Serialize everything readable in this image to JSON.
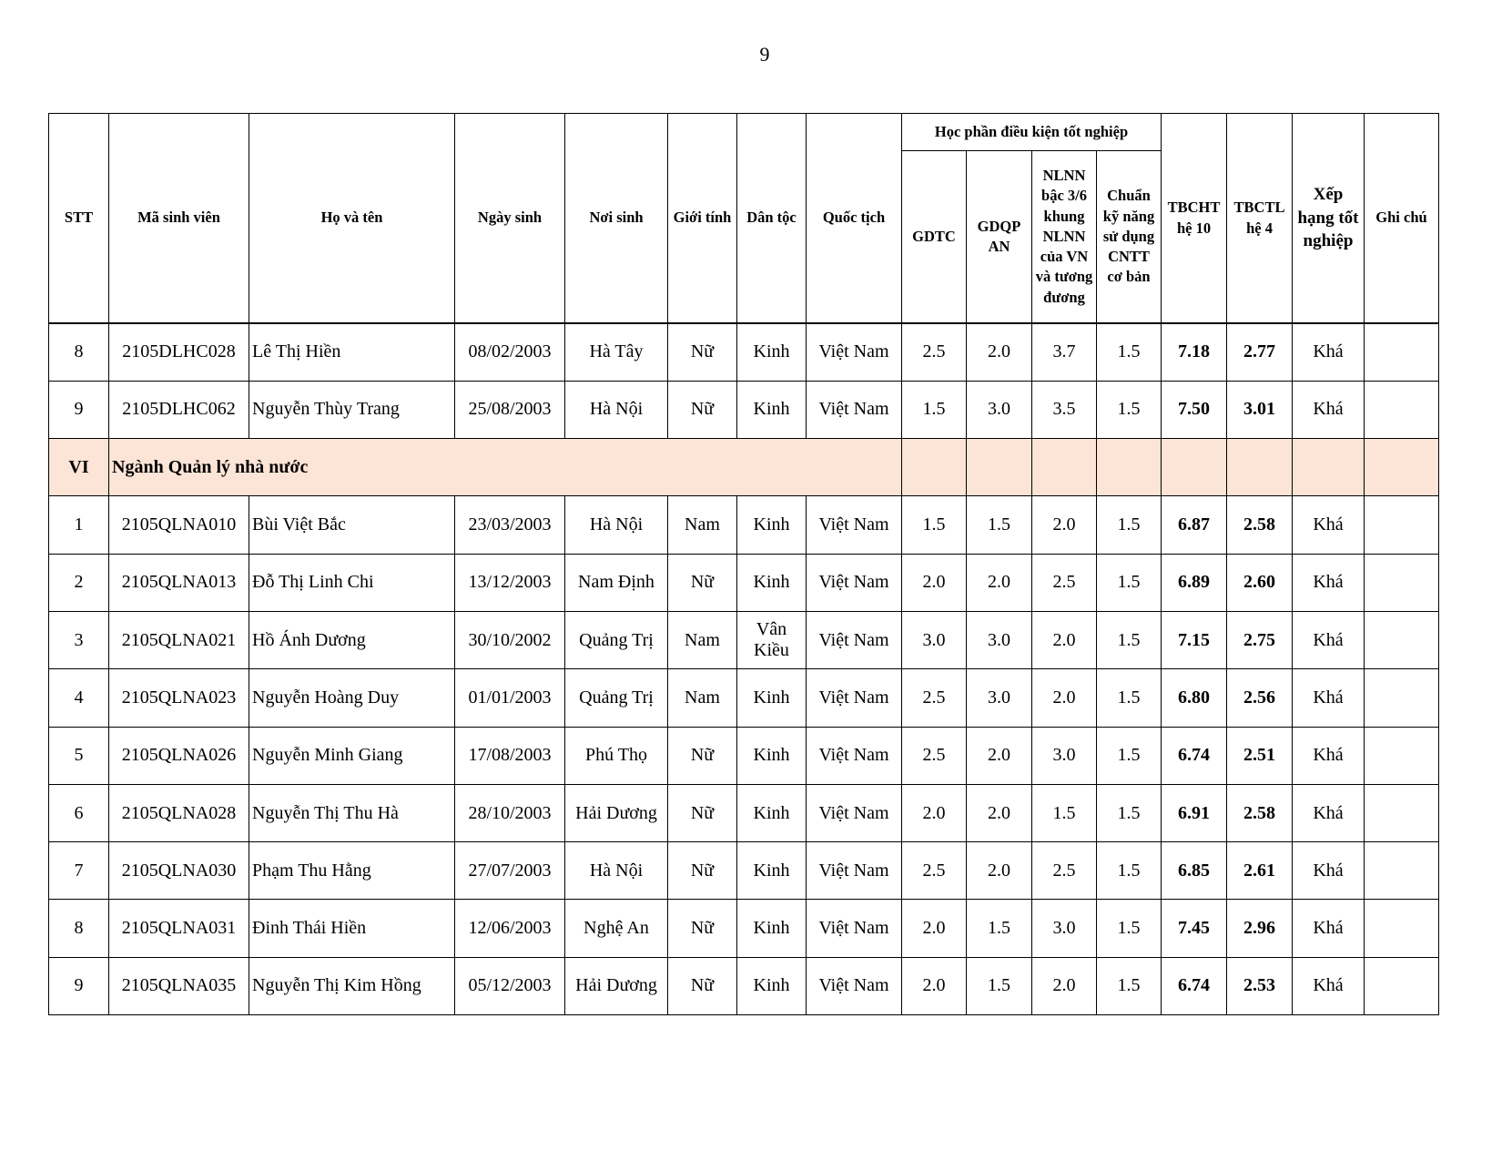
{
  "page_number": "9",
  "header": {
    "stt": "STT",
    "student_id": "Mã sinh viên",
    "full_name": "Họ và tên",
    "dob": "Ngày sinh",
    "birthplace": "Nơi sinh",
    "gender": "Giới tính",
    "ethnicity": "Dân tộc",
    "nationality": "Quốc tịch",
    "group": "Học phần điều kiện tốt nghiệp",
    "gdtc": "GDTC",
    "gdqp": "GDQP AN",
    "nlnn": "NLNN bậc 3/6 khung NLNN của VN và tương đương",
    "cntt": "Chuẩn kỹ năng sử dụng CNTT cơ bản",
    "tbcht": "TBCHT hệ 10",
    "tbctl": "TBCTL hệ 4",
    "rank": "Xếp hạng tốt nghiệp",
    "note": "Ghi chú"
  },
  "rows_before": [
    [
      "8",
      "2105DLHC028",
      "Lê Thị Hiền",
      "08/02/2003",
      "Hà Tây",
      "Nữ",
      "Kinh",
      "Việt Nam",
      "2.5",
      "2.0",
      "3.7",
      "1.5",
      "7.18",
      "2.77",
      "Khá",
      ""
    ],
    [
      "9",
      "2105DLHC062",
      "Nguyễn Thùy Trang",
      "25/08/2003",
      "Hà Nội",
      "Nữ",
      "Kinh",
      "Việt Nam",
      "1.5",
      "3.0",
      "3.5",
      "1.5",
      "7.50",
      "3.01",
      "Khá",
      ""
    ]
  ],
  "section": {
    "number": "VI",
    "title": "Ngành Quản lý nhà nước",
    "color": "#fce4d6"
  },
  "rows_after": [
    [
      "1",
      "2105QLNA010",
      "Bùi Việt Bắc",
      "23/03/2003",
      "Hà Nội",
      "Nam",
      "Kinh",
      "Việt Nam",
      "1.5",
      "1.5",
      "2.0",
      "1.5",
      "6.87",
      "2.58",
      "Khá",
      ""
    ],
    [
      "2",
      "2105QLNA013",
      "Đỗ Thị Linh Chi",
      "13/12/2003",
      "Nam Định",
      "Nữ",
      "Kinh",
      "Việt Nam",
      "2.0",
      "2.0",
      "2.5",
      "1.5",
      "6.89",
      "2.60",
      "Khá",
      ""
    ],
    [
      "3",
      "2105QLNA021",
      "Hồ Ánh Dương",
      "30/10/2002",
      "Quảng Trị",
      "Nam",
      "Vân Kiều",
      "Việt Nam",
      "3.0",
      "3.0",
      "2.0",
      "1.5",
      "7.15",
      "2.75",
      "Khá",
      ""
    ],
    [
      "4",
      "2105QLNA023",
      "Nguyễn Hoàng Duy",
      "01/01/2003",
      "Quảng Trị",
      "Nam",
      "Kinh",
      "Việt Nam",
      "2.5",
      "3.0",
      "2.0",
      "1.5",
      "6.80",
      "2.56",
      "Khá",
      ""
    ],
    [
      "5",
      "2105QLNA026",
      "Nguyễn Minh Giang",
      "17/08/2003",
      "Phú Thọ",
      "Nữ",
      "Kinh",
      "Việt Nam",
      "2.5",
      "2.0",
      "3.0",
      "1.5",
      "6.74",
      "2.51",
      "Khá",
      ""
    ],
    [
      "6",
      "2105QLNA028",
      "Nguyễn Thị Thu Hà",
      "28/10/2003",
      "Hải Dương",
      "Nữ",
      "Kinh",
      "Việt Nam",
      "2.0",
      "2.0",
      "1.5",
      "1.5",
      "6.91",
      "2.58",
      "Khá",
      ""
    ],
    [
      "7",
      "2105QLNA030",
      "Phạm Thu Hằng",
      "27/07/2003",
      "Hà Nội",
      "Nữ",
      "Kinh",
      "Việt Nam",
      "2.5",
      "2.0",
      "2.5",
      "1.5",
      "6.85",
      "2.61",
      "Khá",
      ""
    ],
    [
      "8",
      "2105QLNA031",
      "Đinh Thái Hiền",
      "12/06/2003",
      "Nghệ An",
      "Nữ",
      "Kinh",
      "Việt Nam",
      "2.0",
      "1.5",
      "3.0",
      "1.5",
      "7.45",
      "2.96",
      "Khá",
      ""
    ],
    [
      "9",
      "2105QLNA035",
      "Nguyễn Thị Kim Hồng",
      "05/12/2003",
      "Hải Dương",
      "Nữ",
      "Kinh",
      "Việt Nam",
      "2.0",
      "1.5",
      "2.0",
      "1.5",
      "6.74",
      "2.53",
      "Khá",
      ""
    ]
  ]
}
